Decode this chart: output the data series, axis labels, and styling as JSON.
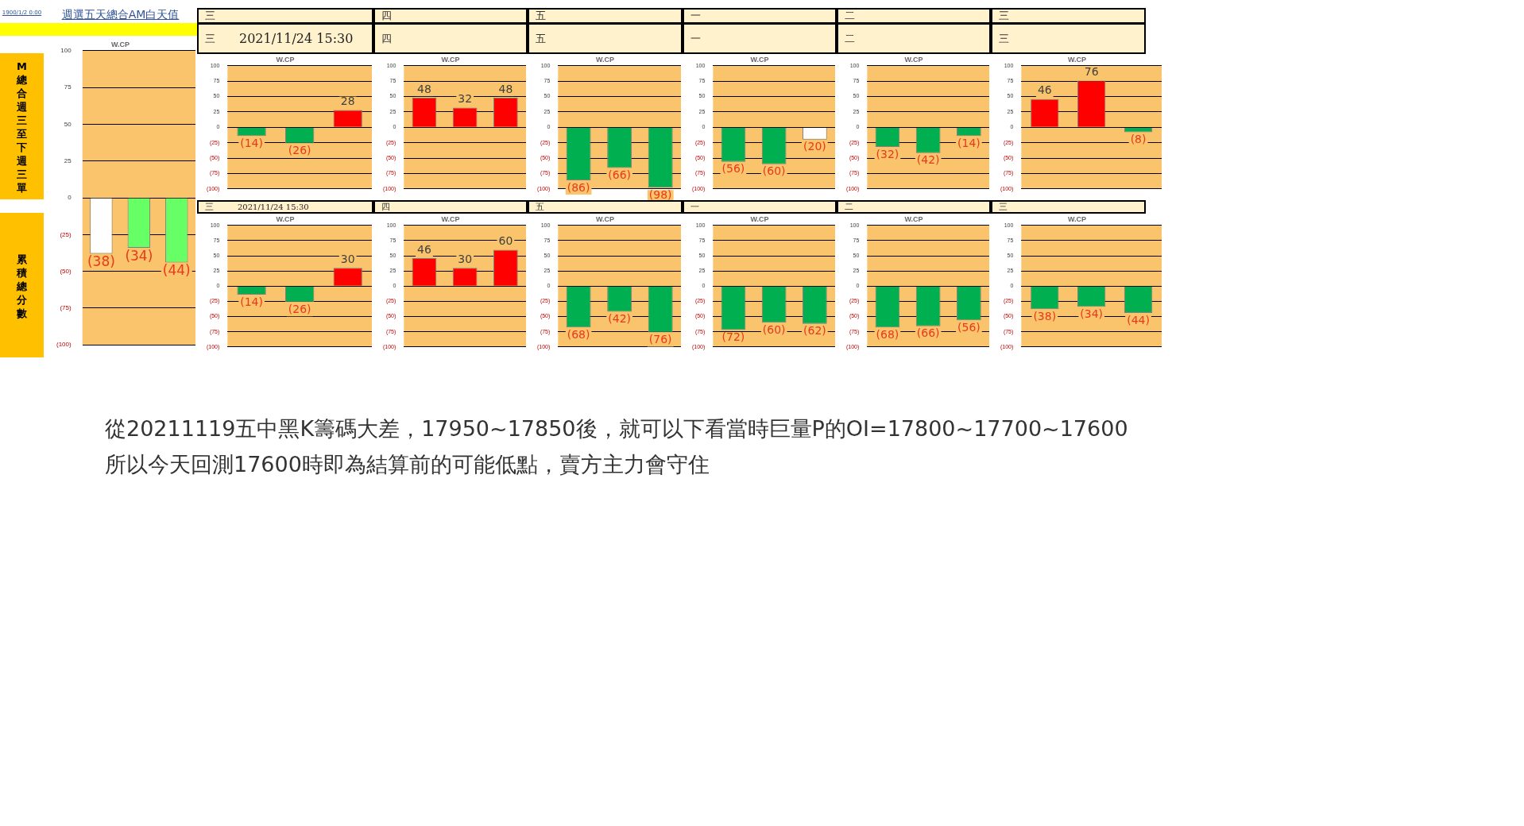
{
  "chart_data": [
    {
      "type": "bar",
      "title": "W.CP",
      "subtitle": "週選五天總合AM白天值",
      "categories": [
        null,
        null,
        null
      ],
      "values": [
        -38,
        -34,
        -44
      ],
      "colors": [
        "#ffffff",
        "#66ff66",
        "#66ff66"
      ],
      "value_labels": [
        "(38)",
        "(34)",
        "(44)"
      ],
      "ylim": [
        -100,
        100
      ],
      "yticks": [
        {
          "value": -100,
          "label": "(100)"
        },
        {
          "value": -75,
          "label": "(75)"
        },
        {
          "value": -50,
          "label": "(50)"
        },
        {
          "value": -25,
          "label": "(25)"
        },
        0,
        25,
        50,
        75,
        100
      ],
      "grid": "y",
      "tick_labels": "y",
      "annotations": [
        "1900/1/2 0:00",
        "M總合週三至下週三單",
        "累積總分數",
        "從20211119五中黑K籌碼大差，17950~17850後，就可以下看當時巨量P的OI=17800~17700~17600",
        "所以今天回測17600時即為結算前的可能低點，賣方主力會守住"
      ]
    },
    {
      "type": "bar",
      "title": "W.CP",
      "subtitle": "三",
      "categories": [
        null,
        null,
        null
      ],
      "values": [
        -14,
        -26,
        28
      ],
      "colors": [
        "#00b050",
        "#00b050",
        "#ff0000"
      ],
      "value_labels": [
        "(14)",
        "(26)",
        "28"
      ],
      "ylim": [
        -100,
        100
      ],
      "yticks": [
        {
          "value": -100,
          "label": "(100)"
        },
        {
          "value": -75,
          "label": "(75)"
        },
        {
          "value": -50,
          "label": "(50)"
        },
        {
          "value": -25,
          "label": "(25)"
        },
        0,
        25,
        50,
        75,
        100
      ],
      "grid": "y",
      "tick_labels": "y",
      "annotations": [
        "三",
        "2021/11/24 15:30"
      ]
    },
    {
      "type": "bar",
      "title": "W.CP",
      "subtitle": "四",
      "categories": [
        null,
        null,
        null
      ],
      "values": [
        48,
        32,
        48
      ],
      "colors": [
        "#ff0000",
        "#ff0000",
        "#ff0000"
      ],
      "value_labels": [
        "48",
        "32",
        "48"
      ],
      "ylim": [
        -100,
        100
      ],
      "yticks": [
        {
          "value": -100,
          "label": "(100)"
        },
        {
          "value": -75,
          "label": "(75)"
        },
        {
          "value": -50,
          "label": "(50)"
        },
        {
          "value": -25,
          "label": "(25)"
        },
        0,
        25,
        50,
        75,
        100
      ],
      "grid": "y",
      "tick_labels": "y",
      "annotations": [
        "四"
      ]
    },
    {
      "type": "bar",
      "title": "W.CP",
      "subtitle": "五",
      "categories": [
        null,
        null,
        null
      ],
      "values": [
        -86,
        -66,
        -98
      ],
      "colors": [
        "#00b050",
        "#00b050",
        "#00b050"
      ],
      "value_labels": [
        "(86)",
        "(66)",
        "(98)"
      ],
      "ylim": [
        -100,
        100
      ],
      "yticks": [
        {
          "value": -100,
          "label": "(100)"
        },
        {
          "value": -75,
          "label": "(75)"
        },
        {
          "value": -50,
          "label": "(50)"
        },
        {
          "value": -25,
          "label": "(25)"
        },
        0,
        25,
        50,
        75,
        100
      ],
      "grid": "y",
      "tick_labels": "y",
      "annotations": [
        "五"
      ]
    },
    {
      "type": "bar",
      "title": "W.CP",
      "subtitle": "一",
      "categories": [
        null,
        null,
        null
      ],
      "values": [
        -56,
        -60,
        -20
      ],
      "colors": [
        "#00b050",
        "#00b050",
        "#ffffff"
      ],
      "value_labels": [
        "(56)",
        "(60)",
        "(20)"
      ],
      "ylim": [
        -100,
        100
      ],
      "yticks": [
        {
          "value": -100,
          "label": "(100)"
        },
        {
          "value": -75,
          "label": "(75)"
        },
        {
          "value": -50,
          "label": "(50)"
        },
        {
          "value": -25,
          "label": "(25)"
        },
        0,
        25,
        50,
        75,
        100
      ],
      "grid": "y",
      "tick_labels": "y",
      "annotations": [
        "一"
      ]
    },
    {
      "type": "bar",
      "title": "W.CP",
      "subtitle": "二",
      "categories": [
        null,
        null,
        null
      ],
      "values": [
        -32,
        -42,
        -14
      ],
      "colors": [
        "#00b050",
        "#00b050",
        "#00b050"
      ],
      "value_labels": [
        "(32)",
        "(42)",
        "(14)"
      ],
      "ylim": [
        -100,
        100
      ],
      "yticks": [
        {
          "value": -100,
          "label": "(100)"
        },
        {
          "value": -75,
          "label": "(75)"
        },
        {
          "value": -50,
          "label": "(50)"
        },
        {
          "value": -25,
          "label": "(25)"
        },
        0,
        25,
        50,
        75,
        100
      ],
      "grid": "y",
      "tick_labels": "y",
      "annotations": [
        "二"
      ]
    },
    {
      "type": "bar",
      "title": "W.CP",
      "subtitle": "三",
      "categories": [
        null,
        null,
        null
      ],
      "values": [
        46,
        76,
        -8
      ],
      "colors": [
        "#ff0000",
        "#ff0000",
        "#00b050"
      ],
      "value_labels": [
        "46",
        "76",
        "(8)"
      ],
      "ylim": [
        -100,
        100
      ],
      "yticks": [
        {
          "value": -100,
          "label": "(100)"
        },
        {
          "value": -75,
          "label": "(75)"
        },
        {
          "value": -50,
          "label": "(50)"
        },
        {
          "value": -25,
          "label": "(25)"
        },
        0,
        25,
        50,
        75,
        100
      ],
      "grid": "y",
      "tick_labels": "y",
      "annotations": [
        "三"
      ]
    },
    {
      "type": "bar",
      "title": "W.CP",
      "subtitle": "三",
      "categories": [
        null,
        null,
        null
      ],
      "values": [
        -14,
        -26,
        30
      ],
      "colors": [
        "#00b050",
        "#00b050",
        "#ff0000"
      ],
      "value_labels": [
        "(14)",
        "(26)",
        "30"
      ],
      "ylim": [
        -100,
        100
      ],
      "yticks": [
        {
          "value": -100,
          "label": "(100)"
        },
        {
          "value": -75,
          "label": "(75)"
        },
        {
          "value": -50,
          "label": "(50)"
        },
        {
          "value": -25,
          "label": "(25)"
        },
        0,
        25,
        50,
        75,
        100
      ],
      "grid": "y",
      "tick_labels": "y",
      "annotations": [
        "2021/11/24 15:30"
      ]
    },
    {
      "type": "bar",
      "title": "W.CP",
      "subtitle": "四",
      "categories": [
        null,
        null,
        null
      ],
      "values": [
        46,
        30,
        60
      ],
      "colors": [
        "#ff0000",
        "#ff0000",
        "#ff0000"
      ],
      "value_labels": [
        "46",
        "30",
        "60"
      ],
      "ylim": [
        -100,
        100
      ],
      "yticks": [
        {
          "value": -100,
          "label": "(100)"
        },
        {
          "value": -75,
          "label": "(75)"
        },
        {
          "value": -50,
          "label": "(50)"
        },
        {
          "value": -25,
          "label": "(25)"
        },
        0,
        25,
        50,
        75,
        100
      ],
      "grid": "y",
      "tick_labels": "y"
    },
    {
      "type": "bar",
      "title": "W.CP",
      "subtitle": "五",
      "categories": [
        null,
        null,
        null
      ],
      "values": [
        -68,
        -42,
        -76
      ],
      "colors": [
        "#00b050",
        "#00b050",
        "#00b050"
      ],
      "value_labels": [
        "(68)",
        "(42)",
        "(76)"
      ],
      "ylim": [
        -100,
        100
      ],
      "yticks": [
        {
          "value": -100,
          "label": "(100)"
        },
        {
          "value": -75,
          "label": "(75)"
        },
        {
          "value": -50,
          "label": "(50)"
        },
        {
          "value": -25,
          "label": "(25)"
        },
        0,
        25,
        50,
        75,
        100
      ],
      "grid": "y",
      "tick_labels": "y"
    },
    {
      "type": "bar",
      "title": "W.CP",
      "subtitle": "一",
      "categories": [
        null,
        null,
        null
      ],
      "values": [
        -72,
        -60,
        -62
      ],
      "colors": [
        "#00b050",
        "#00b050",
        "#00b050"
      ],
      "value_labels": [
        "(72)",
        "(60)",
        "(62)"
      ],
      "ylim": [
        -100,
        100
      ],
      "yticks": [
        {
          "value": -100,
          "label": "(100)"
        },
        {
          "value": -75,
          "label": "(75)"
        },
        {
          "value": -50,
          "label": "(50)"
        },
        {
          "value": -25,
          "label": "(25)"
        },
        0,
        25,
        50,
        75,
        100
      ],
      "grid": "y",
      "tick_labels": "y"
    },
    {
      "type": "bar",
      "title": "W.CP",
      "subtitle": "二",
      "categories": [
        null,
        null,
        null
      ],
      "values": [
        -68,
        -66,
        -56
      ],
      "colors": [
        "#00b050",
        "#00b050",
        "#00b050"
      ],
      "value_labels": [
        "(68)",
        "(66)",
        "(56)"
      ],
      "ylim": [
        -100,
        100
      ],
      "yticks": [
        {
          "value": -100,
          "label": "(100)"
        },
        {
          "value": -75,
          "label": "(75)"
        },
        {
          "value": -50,
          "label": "(50)"
        },
        {
          "value": -25,
          "label": "(25)"
        },
        0,
        25,
        50,
        75,
        100
      ],
      "grid": "y",
      "tick_labels": "y"
    },
    {
      "type": "bar",
      "title": "W.CP",
      "subtitle": "三",
      "categories": [
        null,
        null,
        null
      ],
      "values": [
        -38,
        -34,
        -44
      ],
      "colors": [
        "#00b050",
        "#00b050",
        "#00b050"
      ],
      "value_labels": [
        "(38)",
        "(34)",
        "(44)"
      ],
      "ylim": [
        -100,
        100
      ],
      "yticks": [
        {
          "value": -100,
          "label": "(100)"
        },
        {
          "value": -75,
          "label": "(75)"
        },
        {
          "value": -50,
          "label": "(50)"
        },
        {
          "value": -25,
          "label": "(25)"
        },
        0,
        25,
        50,
        75,
        100
      ],
      "grid": "y",
      "tick_labels": "y"
    }
  ]
}
